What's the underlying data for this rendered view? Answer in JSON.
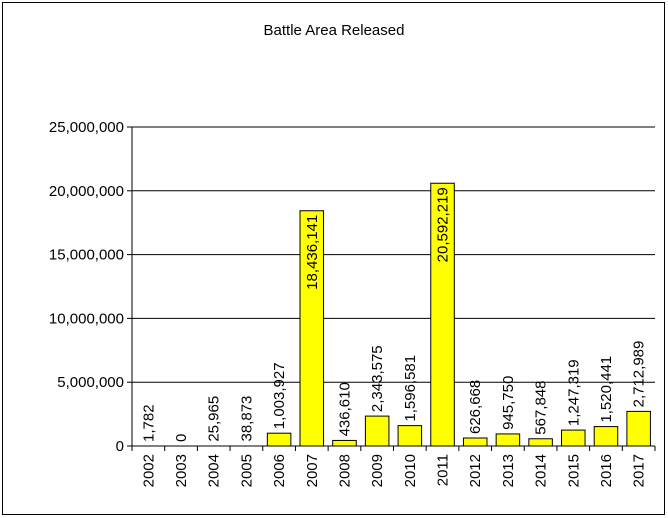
{
  "chart_data": {
    "type": "bar",
    "title": "Battle Area Released",
    "xlabel": "",
    "ylabel": "",
    "ylim": [
      0,
      25000000
    ],
    "yticks": [
      "0",
      "5,000,000",
      "10,000,000",
      "15,000,000",
      "20,000,000",
      "25,000,000"
    ],
    "grid": true,
    "legend": "none",
    "bar_color": "#FFFF00",
    "categories": [
      "2002",
      "2003",
      "2004",
      "2005",
      "2006",
      "2007",
      "2008",
      "2009",
      "2010",
      "2011",
      "2012",
      "2013",
      "2014",
      "2015",
      "2016",
      "2017"
    ],
    "values": [
      1782,
      0,
      25965,
      38873,
      1003927,
      18436141,
      436610,
      2343575,
      1596581,
      20592219,
      626668,
      945750,
      567848,
      1247319,
      1520441,
      2712989
    ],
    "value_labels": [
      "1,782",
      "0",
      "25,965",
      "38,873",
      "1,003,927",
      "18,436,141",
      "436,610",
      "2,343,575",
      "1,596,581",
      "20,592,219",
      "626,668",
      "945,750",
      "567,848",
      "1,247,319",
      "1,520,441",
      "2,712,989"
    ]
  }
}
